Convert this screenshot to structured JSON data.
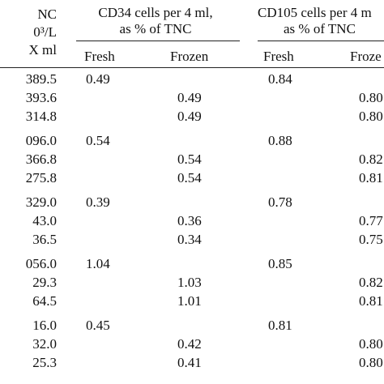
{
  "header": {
    "tnc_line1": "NC",
    "tnc_line2": "0³/L",
    "tnc_line3": "X ml",
    "cd34_line1": "CD34 cells per 4 ml,",
    "cd34_line2": "as % of TNC",
    "cd105_line1": "CD105 cells per 4 m",
    "cd105_line2": "as % of TNC",
    "sub_fresh_1": "Fresh",
    "sub_frozen_1": "Frozen",
    "sub_fresh_2": "Fresh",
    "sub_frozen_2": "Froze"
  },
  "rows": [
    {
      "tnc": "389.5",
      "cd34_fresh": "0.49",
      "cd34_frozen": "",
      "cd105_fresh": "0.84",
      "cd105_frozen": ""
    },
    {
      "tnc": "393.6",
      "cd34_fresh": "",
      "cd34_frozen": "0.49",
      "cd105_fresh": "",
      "cd105_frozen": "0.80"
    },
    {
      "tnc": "314.8",
      "cd34_fresh": "",
      "cd34_frozen": "0.49",
      "cd105_fresh": "",
      "cd105_frozen": "0.80"
    },
    {
      "tnc": "096.0",
      "cd34_fresh": "0.54",
      "cd34_frozen": "",
      "cd105_fresh": "0.88",
      "cd105_frozen": ""
    },
    {
      "tnc": "366.8",
      "cd34_fresh": "",
      "cd34_frozen": "0.54",
      "cd105_fresh": "",
      "cd105_frozen": "0.82"
    },
    {
      "tnc": "275.8",
      "cd34_fresh": "",
      "cd34_frozen": "0.54",
      "cd105_fresh": "",
      "cd105_frozen": "0.81"
    },
    {
      "tnc": "329.0",
      "cd34_fresh": "0.39",
      "cd34_frozen": "",
      "cd105_fresh": "0.78",
      "cd105_frozen": ""
    },
    {
      "tnc": "43.0",
      "cd34_fresh": "",
      "cd34_frozen": "0.36",
      "cd105_fresh": "",
      "cd105_frozen": "0.77"
    },
    {
      "tnc": "36.5",
      "cd34_fresh": "",
      "cd34_frozen": "0.34",
      "cd105_fresh": "",
      "cd105_frozen": "0.75"
    },
    {
      "tnc": "056.0",
      "cd34_fresh": "1.04",
      "cd34_frozen": "",
      "cd105_fresh": "0.85",
      "cd105_frozen": ""
    },
    {
      "tnc": "29.3",
      "cd34_fresh": "",
      "cd34_frozen": "1.03",
      "cd105_fresh": "",
      "cd105_frozen": "0.82"
    },
    {
      "tnc": "64.5",
      "cd34_fresh": "",
      "cd34_frozen": "1.01",
      "cd105_fresh": "",
      "cd105_frozen": "0.81"
    },
    {
      "tnc": "16.0",
      "cd34_fresh": "0.45",
      "cd34_frozen": "",
      "cd105_fresh": "0.81",
      "cd105_frozen": ""
    },
    {
      "tnc": "32.0",
      "cd34_fresh": "",
      "cd34_frozen": "0.42",
      "cd105_fresh": "",
      "cd105_frozen": "0.80"
    },
    {
      "tnc": "25.3",
      "cd34_fresh": "",
      "cd34_frozen": "0.41",
      "cd105_fresh": "",
      "cd105_frozen": "0.80"
    }
  ]
}
